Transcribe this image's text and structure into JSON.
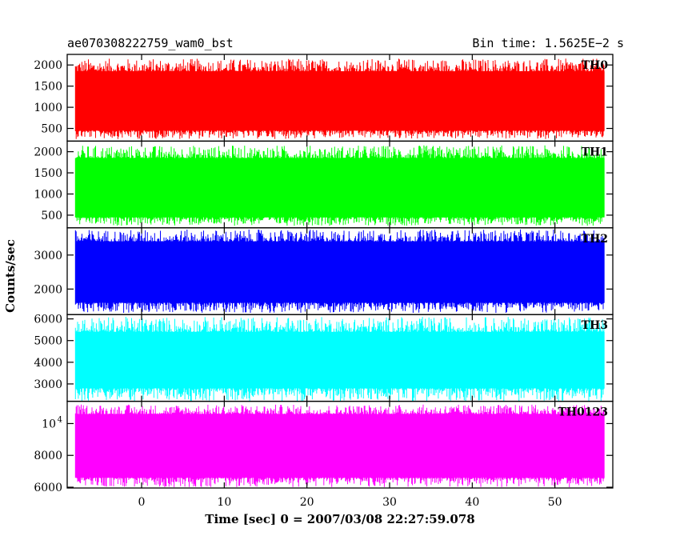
{
  "header": {
    "title": "ae070308222759_wam0_bst",
    "bin_time": "Bin time: 1.5625E−2 s"
  },
  "chart_data": {
    "type": "line",
    "xlabel": "Time [sec] 0 = 2007/03/08 22:27:59.078",
    "ylabel": "Counts/sec",
    "xlim": [
      -9,
      57
    ],
    "x_ticks": [
      0,
      10,
      20,
      30,
      40,
      50
    ],
    "x_tick_labels": [
      "0",
      "10",
      "20",
      "30",
      "40",
      "50"
    ],
    "x_range": [
      -8,
      56
    ],
    "panels": [
      {
        "name": "TH0",
        "color": "#ff0000",
        "ylim": [
          200,
          2250
        ],
        "y_ticks": [
          500,
          1000,
          1500,
          2000
        ],
        "y_tick_labels": [
          "500",
          "1000",
          "1500",
          "2000"
        ],
        "band": {
          "low": 450,
          "high": 1850,
          "min": 250,
          "max": 2150
        }
      },
      {
        "name": "TH1",
        "color": "#00ff00",
        "ylim": [
          200,
          2250
        ],
        "y_ticks": [
          500,
          1000,
          1500,
          2000
        ],
        "y_tick_labels": [
          "500",
          "1000",
          "1500",
          "2000"
        ],
        "band": {
          "low": 450,
          "high": 1850,
          "min": 250,
          "max": 2150
        }
      },
      {
        "name": "TH2",
        "color": "#0000ff",
        "ylim": [
          1250,
          3800
        ],
        "y_ticks": [
          2000,
          3000
        ],
        "y_tick_labels": [
          "2000",
          "3000"
        ],
        "band": {
          "low": 1600,
          "high": 3400,
          "min": 1300,
          "max": 3750
        }
      },
      {
        "name": "TH3",
        "color": "#00ffff",
        "ylim": [
          2200,
          6200
        ],
        "y_ticks": [
          3000,
          4000,
          5000,
          6000
        ],
        "y_tick_labels": [
          "3000",
          "4000",
          "5000",
          "6000"
        ],
        "band": {
          "low": 2800,
          "high": 5400,
          "min": 2200,
          "max": 6100
        }
      },
      {
        "name": "TH0123",
        "color": "#ff00ff",
        "ylim": [
          5950,
          11400
        ],
        "y_ticks": [
          6000,
          8000,
          10000
        ],
        "y_tick_labels": [
          "6000",
          "8000",
          "10^4"
        ],
        "band": {
          "low": 6600,
          "high": 10600,
          "min": 6000,
          "max": 11200
        }
      }
    ]
  }
}
